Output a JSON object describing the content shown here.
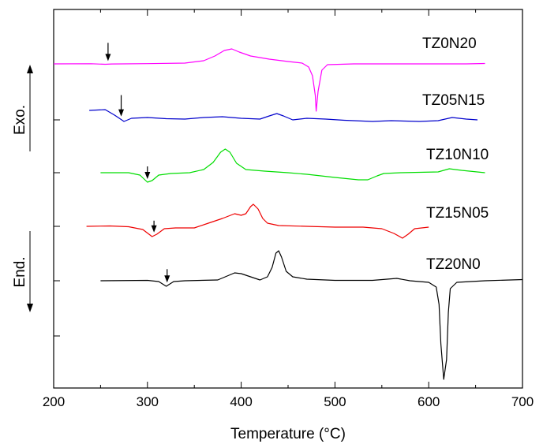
{
  "chart_data": {
    "type": "line",
    "title": "",
    "xlabel": "Temperature (°C)",
    "ylabel_top": "Exo.",
    "ylabel_bottom": "End.",
    "xlim": [
      200,
      700
    ],
    "x_ticks": [
      200,
      300,
      400,
      500,
      600,
      700
    ],
    "grid": false,
    "series": [
      {
        "name": "TZ0N20",
        "color": "#ff00ff",
        "transition_marker": 258,
        "points": [
          [
            200,
            0
          ],
          [
            240,
            0.2
          ],
          [
            255,
            -0.5
          ],
          [
            262,
            -0.1
          ],
          [
            300,
            0.3
          ],
          [
            340,
            1
          ],
          [
            360,
            4
          ],
          [
            372,
            10
          ],
          [
            382,
            17
          ],
          [
            390,
            19
          ],
          [
            398,
            15
          ],
          [
            410,
            10
          ],
          [
            430,
            6
          ],
          [
            450,
            3
          ],
          [
            465,
            1
          ],
          [
            472,
            -4
          ],
          [
            476,
            -15
          ],
          [
            479,
            -40
          ],
          [
            480,
            -60
          ],
          [
            482,
            -35
          ],
          [
            486,
            -8
          ],
          [
            492,
            -1
          ],
          [
            520,
            0
          ],
          [
            560,
            0
          ],
          [
            600,
            0
          ],
          [
            640,
            0
          ],
          [
            660,
            0.5
          ]
        ]
      },
      {
        "name": "TZ05N15",
        "color": "#0000cc",
        "transition_marker": 272,
        "points": [
          [
            238,
            12
          ],
          [
            255,
            13
          ],
          [
            265,
            6
          ],
          [
            270,
            2
          ],
          [
            275,
            -2
          ],
          [
            283,
            2
          ],
          [
            300,
            3
          ],
          [
            320,
            1.5
          ],
          [
            340,
            1
          ],
          [
            360,
            3
          ],
          [
            380,
            4
          ],
          [
            400,
            2
          ],
          [
            420,
            1
          ],
          [
            430,
            5
          ],
          [
            438,
            8
          ],
          [
            445,
            5
          ],
          [
            455,
            0
          ],
          [
            470,
            2
          ],
          [
            490,
            1
          ],
          [
            510,
            -0.5
          ],
          [
            540,
            -2
          ],
          [
            560,
            -1
          ],
          [
            590,
            -2
          ],
          [
            610,
            -1
          ],
          [
            625,
            3
          ],
          [
            640,
            1
          ],
          [
            652,
            0
          ]
        ]
      },
      {
        "name": "TZ10N10",
        "color": "#00dd00",
        "transition_marker": 300,
        "points": [
          [
            250,
            0
          ],
          [
            280,
            0
          ],
          [
            292,
            -3
          ],
          [
            300,
            -12
          ],
          [
            305,
            -10
          ],
          [
            312,
            -3
          ],
          [
            325,
            -1
          ],
          [
            345,
            0
          ],
          [
            360,
            4
          ],
          [
            370,
            13
          ],
          [
            378,
            26
          ],
          [
            383,
            30
          ],
          [
            388,
            26
          ],
          [
            395,
            12
          ],
          [
            405,
            4
          ],
          [
            425,
            2
          ],
          [
            450,
            0
          ],
          [
            470,
            -2
          ],
          [
            500,
            -6
          ],
          [
            525,
            -9
          ],
          [
            535,
            -9
          ],
          [
            545,
            -4
          ],
          [
            552,
            -1
          ],
          [
            570,
            0
          ],
          [
            610,
            1
          ],
          [
            622,
            5
          ],
          [
            635,
            3
          ],
          [
            660,
            0
          ]
        ]
      },
      {
        "name": "TZ15N05",
        "color": "#ee0000",
        "transition_marker": 307,
        "points": [
          [
            235,
            0
          ],
          [
            260,
            0.5
          ],
          [
            280,
            -0.5
          ],
          [
            295,
            -4
          ],
          [
            305,
            -13
          ],
          [
            310,
            -10
          ],
          [
            318,
            -3
          ],
          [
            330,
            -2
          ],
          [
            350,
            -2
          ],
          [
            365,
            4
          ],
          [
            380,
            10
          ],
          [
            393,
            16
          ],
          [
            400,
            14
          ],
          [
            405,
            16
          ],
          [
            410,
            25
          ],
          [
            413,
            28
          ],
          [
            418,
            22
          ],
          [
            423,
            10
          ],
          [
            428,
            4
          ],
          [
            440,
            1
          ],
          [
            470,
            0
          ],
          [
            500,
            -1
          ],
          [
            530,
            -1
          ],
          [
            550,
            -3
          ],
          [
            563,
            -9
          ],
          [
            572,
            -15
          ],
          [
            578,
            -10
          ],
          [
            585,
            -3
          ],
          [
            600,
            -1
          ]
        ]
      },
      {
        "name": "TZ20N0",
        "color": "#000000",
        "transition_marker": 321,
        "points": [
          [
            250,
            0
          ],
          [
            300,
            0.5
          ],
          [
            312,
            -1
          ],
          [
            320,
            -7
          ],
          [
            328,
            -1
          ],
          [
            340,
            0
          ],
          [
            375,
            1
          ],
          [
            385,
            6
          ],
          [
            393,
            10
          ],
          [
            400,
            9
          ],
          [
            410,
            5
          ],
          [
            420,
            1
          ],
          [
            428,
            5
          ],
          [
            433,
            17
          ],
          [
            437,
            35
          ],
          [
            440,
            38
          ],
          [
            443,
            30
          ],
          [
            448,
            12
          ],
          [
            455,
            5
          ],
          [
            470,
            2
          ],
          [
            500,
            0.5
          ],
          [
            540,
            0.5
          ],
          [
            566,
            3
          ],
          [
            580,
            0
          ],
          [
            600,
            -2
          ],
          [
            608,
            -8
          ],
          [
            611,
            -30
          ],
          [
            613,
            -80
          ],
          [
            616,
            -125
          ],
          [
            619,
            -100
          ],
          [
            621,
            -40
          ],
          [
            623,
            -10
          ],
          [
            630,
            -2
          ],
          [
            660,
            0
          ],
          [
            700,
            1.5
          ]
        ]
      }
    ]
  }
}
